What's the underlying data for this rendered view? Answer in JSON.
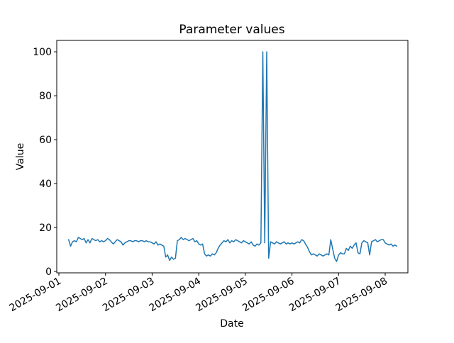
{
  "figure": {
    "kind": "matplotlib-line-plot"
  },
  "chart_data": {
    "type": "line",
    "title": "Parameter values",
    "xlabel": "Date",
    "ylabel": "Value",
    "line_color": "#1f77b4",
    "axis_color": "#000000",
    "background_color": "#ffffff",
    "grid": false,
    "legend": "none",
    "y_ticks": [
      0,
      20,
      40,
      60,
      80,
      100
    ],
    "x_tick_labels": [
      "2025-09-01",
      "2025-09-02",
      "2025-09-03",
      "2025-09-04",
      "2025-09-05",
      "2025-09-06",
      "2025-09-07",
      "2025-09-08"
    ],
    "x_tick_rotation_deg": 30,
    "ylim": [
      -0.65,
      105.2
    ],
    "xlim_days": [
      -0.046,
      7.487
    ],
    "series": [
      {
        "name": "parameter",
        "start": "2025-09-01 05:00",
        "interval_hours": 1,
        "values": [
          14.5,
          11.5,
          13.5,
          14,
          13.5,
          15.5,
          15,
          14.5,
          15,
          13,
          14.5,
          13,
          15,
          14.5,
          14,
          14.5,
          13.5,
          14,
          13.5,
          14,
          15,
          14.5,
          13.5,
          12.5,
          13.5,
          14.5,
          14,
          13.5,
          12,
          13,
          13.5,
          14,
          14,
          13.5,
          14,
          14,
          13.5,
          14,
          14,
          13.5,
          14,
          13.5,
          13.5,
          13,
          12.5,
          13.5,
          12,
          12.5,
          12,
          11.5,
          6.5,
          7.5,
          5,
          6.5,
          5.5,
          6,
          14,
          14.5,
          15.5,
          14.5,
          15,
          14.5,
          14,
          14.5,
          15,
          13.5,
          14,
          12.5,
          12,
          12.5,
          8,
          7,
          7.5,
          7,
          8,
          7.5,
          8.5,
          10.5,
          12,
          13,
          14,
          13.5,
          14.5,
          13,
          14,
          13.5,
          14.5,
          14,
          13.5,
          13,
          14,
          13.5,
          13,
          12.5,
          13.5,
          12,
          11.5,
          12.5,
          12,
          13,
          100,
          13,
          100,
          6,
          13.5,
          13,
          12.5,
          13.5,
          13,
          12.5,
          13,
          13.5,
          12.5,
          13,
          12.5,
          13,
          12.5,
          13,
          13.5,
          13,
          14.5,
          14,
          12.5,
          11,
          9,
          7.5,
          8,
          7.5,
          7,
          8,
          7.5,
          7,
          7.5,
          8,
          7.5,
          14.5,
          10,
          6,
          4.5,
          7.5,
          8.5,
          8,
          8,
          10.5,
          9.5,
          11.5,
          10.5,
          12,
          13,
          8.5,
          8,
          13,
          14,
          13.5,
          13,
          7.5,
          13.5,
          14,
          14.5,
          13.5,
          14,
          14.5,
          14.5,
          13,
          12.5,
          12,
          12.5,
          11.5,
          12,
          11.5
        ]
      }
    ]
  }
}
